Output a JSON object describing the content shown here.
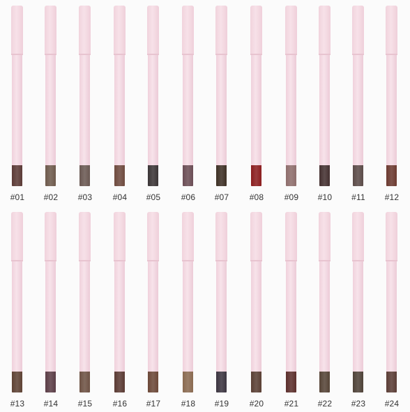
{
  "rows": [
    [
      {
        "label": "#01",
        "color": "#5b3a36"
      },
      {
        "label": "#02",
        "color": "#6e5a4c"
      },
      {
        "label": "#03",
        "color": "#6a5852"
      },
      {
        "label": "#04",
        "color": "#6e4a3e"
      },
      {
        "label": "#05",
        "color": "#3b3536"
      },
      {
        "label": "#06",
        "color": "#6b4d55"
      },
      {
        "label": "#07",
        "color": "#3e3025"
      },
      {
        "label": "#08",
        "color": "#8b1d1e"
      },
      {
        "label": "#09",
        "color": "#8e6e6c"
      },
      {
        "label": "#10",
        "color": "#443030"
      },
      {
        "label": "#11",
        "color": "#5b4b48"
      },
      {
        "label": "#12",
        "color": "#6c3a30"
      }
    ],
    [
      {
        "label": "#13",
        "color": "#5e4234"
      },
      {
        "label": "#14",
        "color": "#5b3d46"
      },
      {
        "label": "#15",
        "color": "#6e5244"
      },
      {
        "label": "#16",
        "color": "#5a3a33"
      },
      {
        "label": "#17",
        "color": "#6c4838"
      },
      {
        "label": "#18",
        "color": "#8a6a50"
      },
      {
        "label": "#19",
        "color": "#3c3540"
      },
      {
        "label": "#20",
        "color": "#5a3f34"
      },
      {
        "label": "#21",
        "color": "#5c2f2c"
      },
      {
        "label": "#22",
        "color": "#564437"
      },
      {
        "label": "#23",
        "color": "#4e4238"
      },
      {
        "label": "#24",
        "color": "#5b3d36"
      }
    ]
  ]
}
